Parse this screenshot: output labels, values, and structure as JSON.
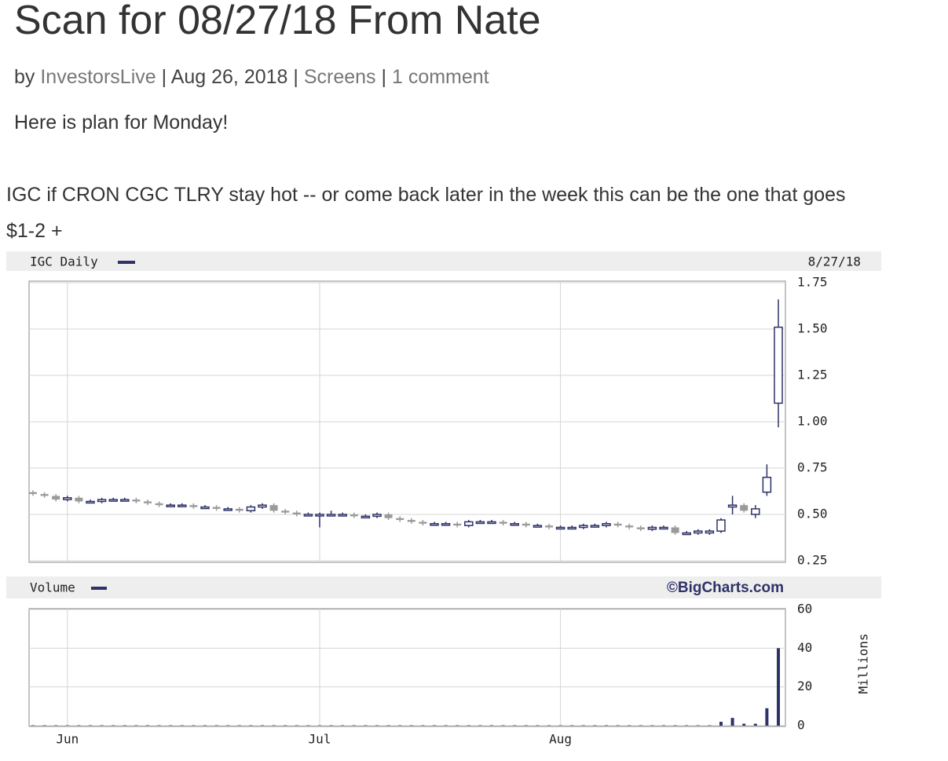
{
  "header": {
    "title": "Scan for 08/27/18 From Nate",
    "meta": {
      "prefix": "by",
      "author": "InvestorsLive",
      "date": "Aug 26, 2018",
      "category": "Screens",
      "comments": "1 comment",
      "separator": "|"
    }
  },
  "body": {
    "intro": "Here is plan for Monday!",
    "lines": [
      "IGC if CRON CGC TLRY stay hot -- or come back later in the week this can be the one that goes",
      "$1-2 +"
    ]
  },
  "chart_data": {
    "type": "candlestick",
    "title": "IGC Daily",
    "date_label": "8/27/18",
    "credit": "©BigCharts.com",
    "categories": [
      null,
      null,
      null,
      "Jun",
      null,
      null,
      null,
      null,
      null,
      null,
      null,
      null,
      null,
      null,
      null,
      null,
      null,
      null,
      null,
      null,
      null,
      null,
      null,
      null,
      null,
      "Jul",
      null,
      null,
      null,
      null,
      null,
      null,
      null,
      null,
      null,
      null,
      null,
      null,
      null,
      null,
      null,
      null,
      null,
      null,
      null,
      null,
      "Aug",
      null,
      null,
      null,
      null,
      null,
      null,
      null,
      null,
      null,
      null,
      null,
      null,
      null,
      null,
      null,
      null,
      null,
      null,
      null
    ],
    "open": [
      0.62,
      0.61,
      0.6,
      0.58,
      0.59,
      0.57,
      0.57,
      0.58,
      0.58,
      0.58,
      0.57,
      0.56,
      0.55,
      0.55,
      0.55,
      0.54,
      0.54,
      0.53,
      0.53,
      0.52,
      0.54,
      0.55,
      0.52,
      0.51,
      0.5,
      0.5,
      0.5,
      0.5,
      0.5,
      0.49,
      0.49,
      0.5,
      0.48,
      0.47,
      0.46,
      0.45,
      0.45,
      0.45,
      0.44,
      0.46,
      0.46,
      0.46,
      0.45,
      0.45,
      0.44,
      0.44,
      0.43,
      0.43,
      0.43,
      0.44,
      0.44,
      0.45,
      0.44,
      0.43,
      0.42,
      0.43,
      0.43,
      0.4,
      0.4,
      0.4,
      0.41,
      0.54,
      0.55,
      0.5,
      0.62,
      1.1
    ],
    "high": [
      0.63,
      0.62,
      0.61,
      0.6,
      0.6,
      0.58,
      0.59,
      0.59,
      0.59,
      0.59,
      0.58,
      0.57,
      0.56,
      0.56,
      0.56,
      0.55,
      0.55,
      0.54,
      0.54,
      0.55,
      0.56,
      0.56,
      0.53,
      0.52,
      0.51,
      0.51,
      0.52,
      0.51,
      0.51,
      0.5,
      0.51,
      0.51,
      0.49,
      0.48,
      0.47,
      0.46,
      0.46,
      0.46,
      0.47,
      0.47,
      0.47,
      0.47,
      0.46,
      0.46,
      0.45,
      0.45,
      0.44,
      0.44,
      0.45,
      0.45,
      0.46,
      0.46,
      0.45,
      0.44,
      0.44,
      0.44,
      0.44,
      0.41,
      0.42,
      0.42,
      0.48,
      0.6,
      0.56,
      0.55,
      0.77,
      1.66
    ],
    "low": [
      0.6,
      0.59,
      0.57,
      0.57,
      0.56,
      0.56,
      0.56,
      0.57,
      0.57,
      0.56,
      0.55,
      0.54,
      0.54,
      0.54,
      0.53,
      0.53,
      0.52,
      0.52,
      0.51,
      0.51,
      0.53,
      0.51,
      0.5,
      0.49,
      0.49,
      0.43,
      0.49,
      0.49,
      0.48,
      0.48,
      0.48,
      0.47,
      0.46,
      0.45,
      0.44,
      0.44,
      0.44,
      0.43,
      0.43,
      0.45,
      0.45,
      0.44,
      0.44,
      0.43,
      0.43,
      0.42,
      0.42,
      0.42,
      0.42,
      0.43,
      0.43,
      0.43,
      0.42,
      0.41,
      0.41,
      0.42,
      0.39,
      0.39,
      0.39,
      0.39,
      0.4,
      0.5,
      0.51,
      0.48,
      0.6,
      0.97
    ],
    "close": [
      0.61,
      0.6,
      0.58,
      0.59,
      0.57,
      0.57,
      0.58,
      0.58,
      0.58,
      0.57,
      0.56,
      0.55,
      0.55,
      0.55,
      0.54,
      0.54,
      0.53,
      0.53,
      0.52,
      0.54,
      0.55,
      0.52,
      0.51,
      0.5,
      0.5,
      0.5,
      0.5,
      0.5,
      0.49,
      0.49,
      0.5,
      0.48,
      0.47,
      0.46,
      0.45,
      0.45,
      0.45,
      0.44,
      0.46,
      0.46,
      0.46,
      0.45,
      0.45,
      0.44,
      0.44,
      0.43,
      0.43,
      0.43,
      0.44,
      0.44,
      0.45,
      0.44,
      0.43,
      0.42,
      0.43,
      0.43,
      0.4,
      0.4,
      0.41,
      0.41,
      0.47,
      0.55,
      0.52,
      0.53,
      0.7,
      1.51
    ],
    "up_color": "#2e3267",
    "down_color": "#9a9a9a",
    "ylim": [
      0.25,
      1.75
    ],
    "yticks": [
      0.25,
      {
        "value": 0.5,
        "label": "0.50"
      },
      {
        "value": 0.75,
        "label": "0.75"
      },
      {
        "value": 1,
        "label": "1.00"
      },
      {
        "value": 1.25,
        "label": "1.25"
      },
      {
        "value": 1.5,
        "label": "1.50"
      },
      1.75
    ],
    "grid": true,
    "volume": {
      "title": "Volume",
      "axis_label": "Millions",
      "color": "#2e3267",
      "values": [
        0.2,
        0.2,
        0.2,
        0.2,
        0.2,
        0.2,
        0.2,
        0.2,
        0.2,
        0.2,
        0.2,
        0.2,
        0.2,
        0.2,
        0.2,
        0.2,
        0.2,
        0.2,
        0.2,
        0.2,
        0.2,
        0.2,
        0.2,
        0.2,
        0.2,
        0.2,
        0.2,
        0.2,
        0.2,
        0.2,
        0.2,
        0.2,
        0.2,
        0.2,
        0.2,
        0.2,
        0.2,
        0.2,
        0.2,
        0.2,
        0.2,
        0.2,
        0.2,
        0.2,
        0.2,
        0.2,
        0.2,
        0.2,
        0.2,
        0.2,
        0.2,
        0.2,
        0.2,
        0.2,
        0.2,
        0.2,
        0.2,
        0.2,
        0.2,
        0.2,
        2,
        4,
        1,
        1,
        9,
        40
      ],
      "ylim": [
        0,
        60
      ],
      "yticks": [
        0,
        20,
        40,
        60
      ]
    }
  }
}
